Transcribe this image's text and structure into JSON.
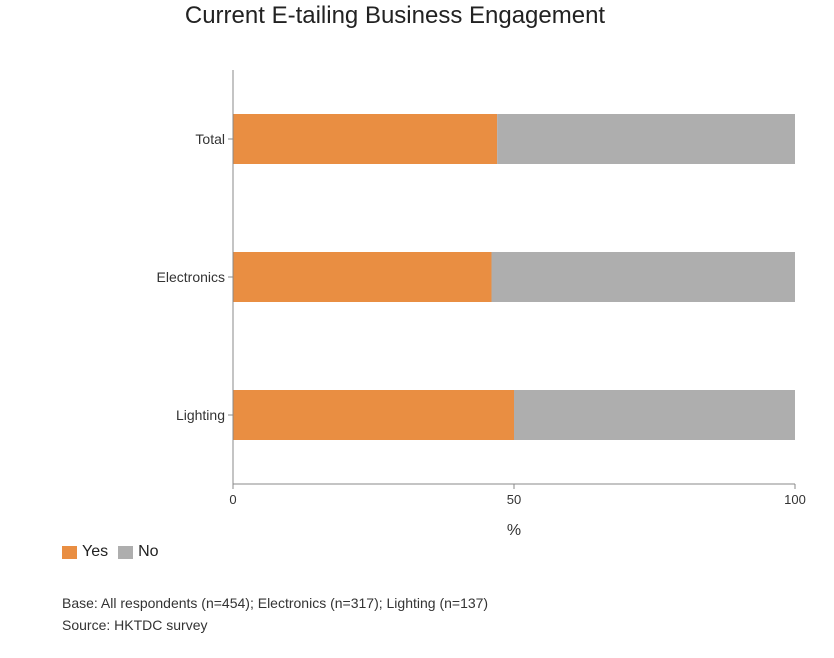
{
  "chart_data": {
    "type": "bar",
    "orientation": "horizontal",
    "stacked": true,
    "title": "Current E-tailing Business Engagement",
    "xlabel": "%",
    "ylabel": "",
    "xlim": [
      0,
      100
    ],
    "xticks": [
      0,
      50,
      100
    ],
    "categories": [
      "Total",
      "Electronics",
      "Lighting"
    ],
    "series": [
      {
        "name": "Yes",
        "color": "#E98E42",
        "values": [
          47,
          46,
          50
        ]
      },
      {
        "name": "No",
        "color": "#AEAEAE",
        "values": [
          53,
          54,
          50
        ]
      }
    ],
    "grid": false,
    "legend": "bottom-left"
  },
  "footnotes": {
    "base": "Base: All respondents (n=454); Electronics (n=317); Lighting (n=137)",
    "source": "Source: HKTDC survey"
  }
}
